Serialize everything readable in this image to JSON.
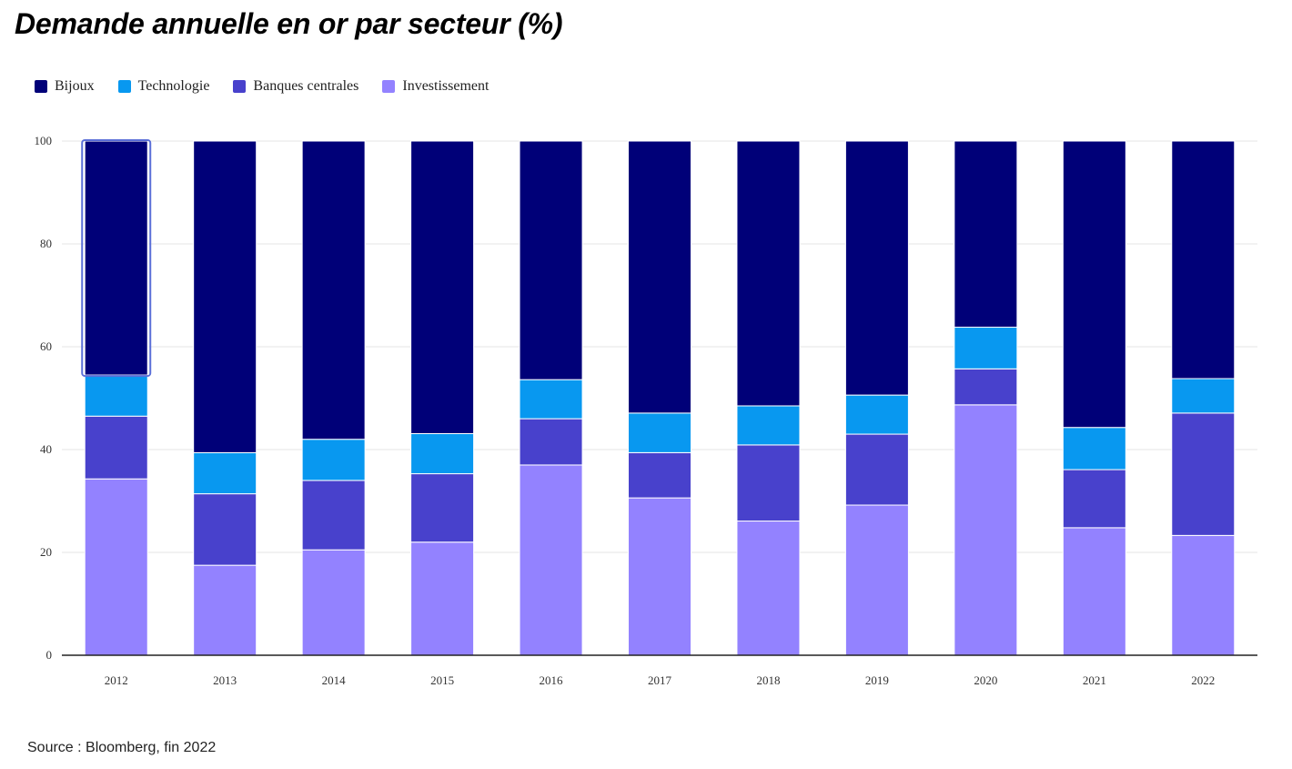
{
  "title": "Demande annuelle en or par secteur (%)",
  "source": "Source : Bloomberg, fin 2022",
  "legend": [
    {
      "label": "Bijoux",
      "color": "#000078"
    },
    {
      "label": "Technologie",
      "color": "#0898F0"
    },
    {
      "label": "Banques centrales",
      "color": "#4841CC"
    },
    {
      "label": "Investissement",
      "color": "#9382FF"
    }
  ],
  "chart_data": {
    "type": "bar",
    "stacked": true,
    "categories": [
      "2012",
      "2013",
      "2014",
      "2015",
      "2016",
      "2017",
      "2018",
      "2019",
      "2020",
      "2021",
      "2022"
    ],
    "series": [
      {
        "name": "Investissement",
        "color": "#9382FF",
        "values": [
          34.3,
          17.5,
          20.5,
          22.0,
          37.0,
          30.6,
          26.1,
          29.2,
          48.7,
          24.8,
          23.3
        ]
      },
      {
        "name": "Banques centrales",
        "color": "#4841CC",
        "values": [
          12.2,
          13.9,
          13.5,
          13.3,
          9.0,
          8.8,
          14.8,
          13.8,
          7.0,
          11.3,
          23.8
        ]
      },
      {
        "name": "Technologie",
        "color": "#0898F0",
        "values": [
          8.0,
          8.0,
          8.0,
          7.8,
          7.6,
          7.7,
          7.6,
          7.6,
          8.1,
          8.2,
          6.7
        ]
      },
      {
        "name": "Bijoux",
        "color": "#000078",
        "values": [
          45.5,
          60.6,
          58.0,
          56.9,
          46.4,
          52.9,
          51.5,
          49.4,
          36.2,
          55.7,
          46.2
        ]
      }
    ],
    "yticks": [
      "0",
      "20",
      "40",
      "60",
      "80",
      "100"
    ],
    "ylim": [
      0,
      100
    ],
    "xlabel": "",
    "ylabel": "",
    "grid": true,
    "legend_position": "top-left",
    "highlighted_category": "2012"
  }
}
